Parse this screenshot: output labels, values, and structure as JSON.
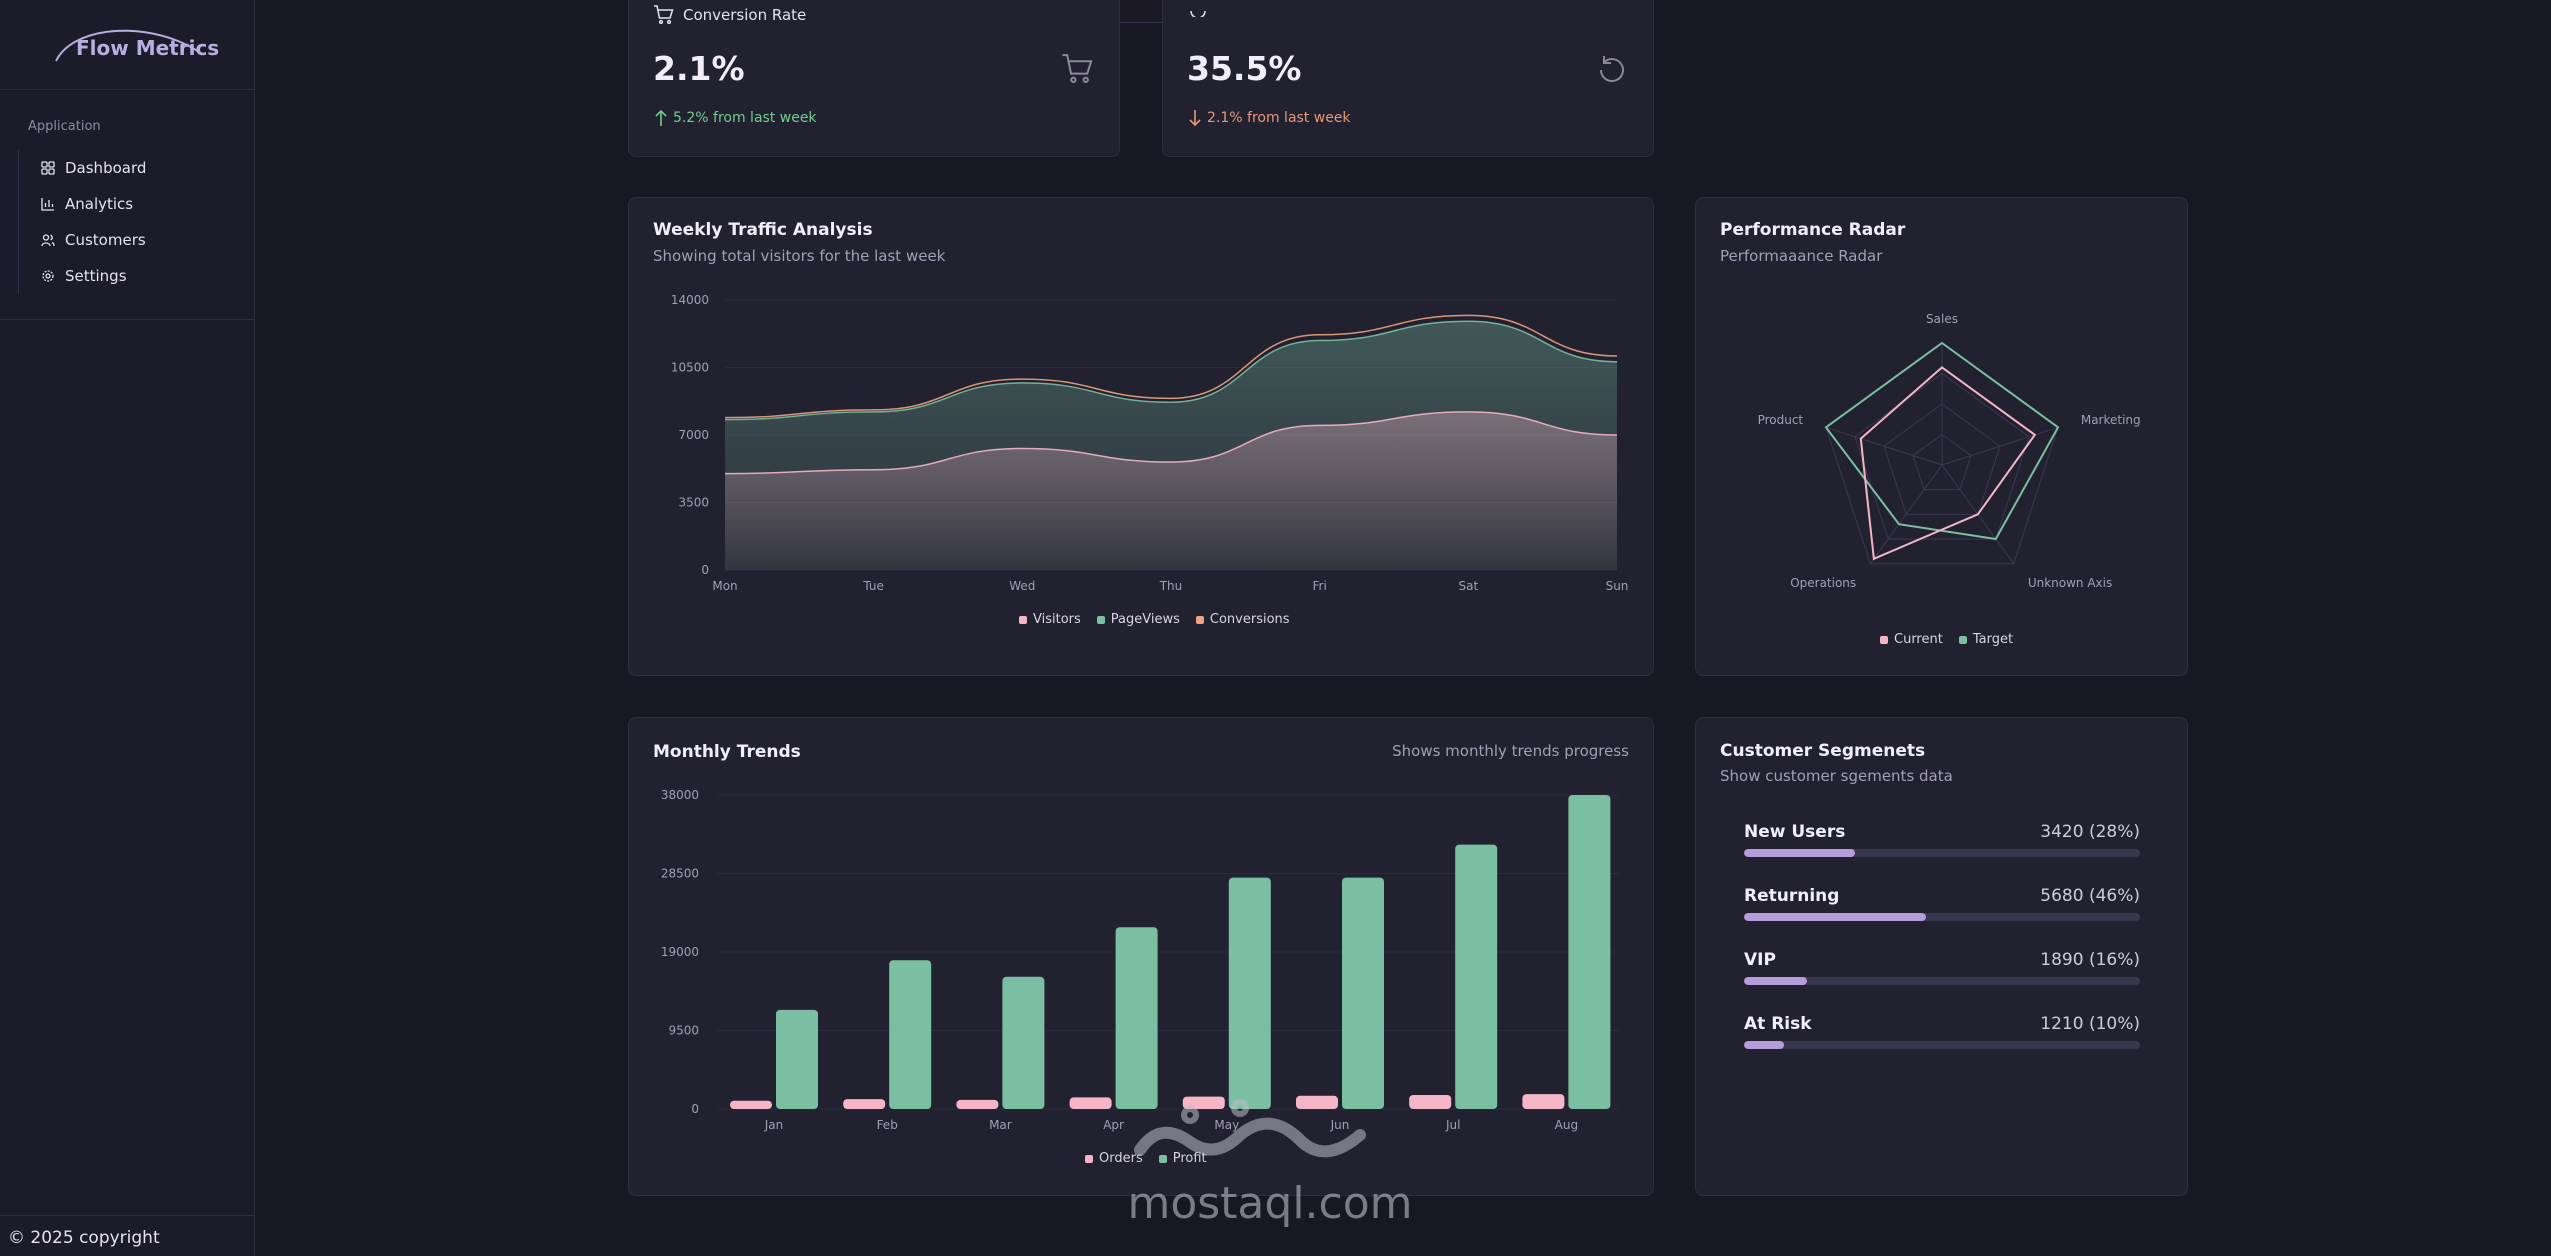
{
  "brand": {
    "name": "Flow Metrics"
  },
  "sidebar": {
    "group_label": "Application",
    "items": [
      {
        "label": "Dashboard",
        "icon": "grid-icon"
      },
      {
        "label": "Analytics",
        "icon": "bar-chart-icon"
      },
      {
        "label": "Customers",
        "icon": "users-icon"
      },
      {
        "label": "Settings",
        "icon": "gear-icon"
      }
    ],
    "footer": "© 2025 copyright"
  },
  "stats": [
    {
      "label": "Conversion Rate",
      "value": "2.1%",
      "delta": "5.2% from last week",
      "trend": "up",
      "icon": "cart-icon"
    },
    {
      "label": "",
      "value": "35.5%",
      "delta": "2.1% from last week",
      "trend": "down",
      "icon": "refresh-icon"
    }
  ],
  "traffic": {
    "title": "Weekly Traffic Analysis",
    "subtitle": "Showing total visitors for the last week"
  },
  "radar": {
    "title": "Performance Radar",
    "subtitle": "Performaaance Radar"
  },
  "monthly": {
    "title": "Monthly Trends",
    "subtitle": "Shows monthly trends progress"
  },
  "segments": {
    "title": "Customer Segmenets",
    "subtitle": "Show customer sgements data",
    "items": [
      {
        "name": "New Users",
        "value": "3420 (28%)",
        "pct": 28
      },
      {
        "name": "Returning",
        "value": "5680 (46%)",
        "pct": 46
      },
      {
        "name": "VIP",
        "value": "1890 (16%)",
        "pct": 16
      },
      {
        "name": "At Risk",
        "value": "1210 (10%)",
        "pct": 10
      }
    ]
  },
  "colors": {
    "pink": "#f4b6c7",
    "teal": "#7bbfa3",
    "orange": "#f0a37f",
    "purple": "#b39ddb"
  },
  "watermark": {
    "text": "mostaql.com"
  },
  "chart_data": [
    {
      "type": "area",
      "title": "Weekly Traffic Analysis",
      "categories": [
        "Mon",
        "Tue",
        "Wed",
        "Thu",
        "Fri",
        "Sat",
        "Sun"
      ],
      "yticks": [
        0,
        3500,
        7000,
        10500,
        14000
      ],
      "ylim": [
        0,
        14000
      ],
      "series": [
        {
          "name": "Visitors",
          "values": [
            5000,
            5200,
            6300,
            5600,
            7500,
            8200,
            7000
          ],
          "color": "#f4b6c7"
        },
        {
          "name": "PageViews",
          "values": [
            7800,
            8200,
            9700,
            8700,
            11900,
            12900,
            10800
          ],
          "color": "#7bbfa3"
        },
        {
          "name": "Conversions",
          "values": [
            7900,
            8300,
            9900,
            8900,
            12200,
            13200,
            11100
          ],
          "color": "#f0a37f"
        }
      ]
    },
    {
      "type": "radar",
      "title": "Performance Radar",
      "axes": [
        "Sales",
        "Marketing",
        "Unknown Axis",
        "Operations",
        "Product"
      ],
      "range": [
        0,
        100
      ],
      "series": [
        {
          "name": "Current",
          "values": [
            80,
            80,
            50,
            95,
            70
          ],
          "color": "#f4b6c7"
        },
        {
          "name": "Target",
          "values": [
            100,
            100,
            75,
            60,
            100
          ],
          "color": "#7bbfa3"
        }
      ]
    },
    {
      "type": "bar",
      "title": "Monthly Trends",
      "categories": [
        "Jan",
        "Feb",
        "Mar",
        "Apr",
        "May",
        "Jun",
        "Jul",
        "Aug"
      ],
      "yticks": [
        0,
        9500,
        19000,
        28500,
        38000
      ],
      "ylim": [
        0,
        38000
      ],
      "series": [
        {
          "name": "Orders",
          "values": [
            1000,
            1200,
            1100,
            1400,
            1500,
            1600,
            1700,
            1800
          ],
          "color": "#f4b6c7"
        },
        {
          "name": "Profit",
          "values": [
            12000,
            18000,
            16000,
            22000,
            28000,
            28000,
            32000,
            38000
          ],
          "color": "#7bbfa3"
        }
      ]
    }
  ]
}
